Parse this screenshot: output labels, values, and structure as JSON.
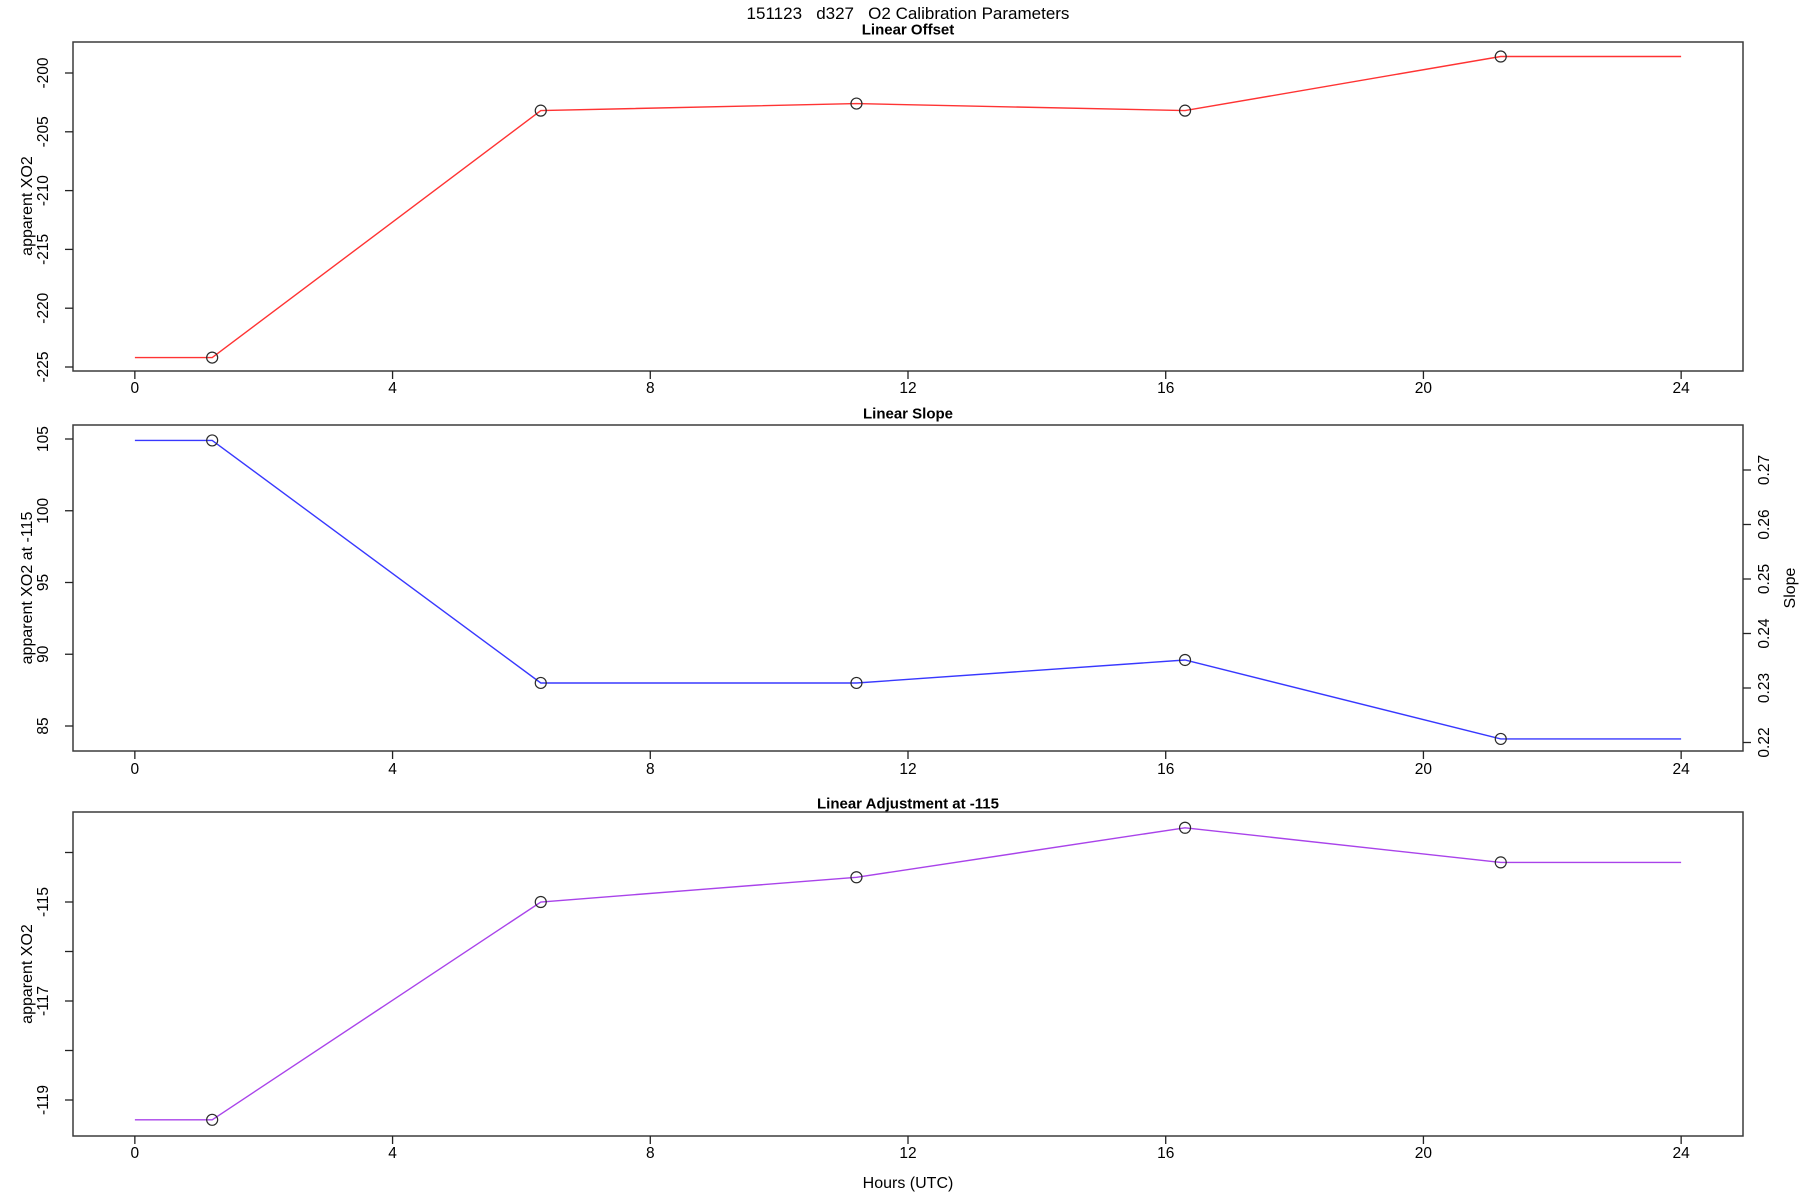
{
  "page_title": "151123   d327   O2 Calibration Parameters",
  "xlabel": "Hours (UTC)",
  "x_ticks": [
    0,
    4,
    8,
    12,
    16,
    20,
    24
  ],
  "xlim": [
    0,
    24
  ],
  "marker_color": "#2a2a2a",
  "chart_data": [
    {
      "type": "line",
      "title": "Linear Offset",
      "ylabel": "apparent XO2",
      "color": "#ff3333",
      "x": [
        1.2,
        6.3,
        11.2,
        16.3,
        21.2
      ],
      "values": [
        -224.2,
        -203.2,
        -202.6,
        -203.2,
        -198.6
      ],
      "line_extends_to": [
        0,
        24
      ],
      "y_ticks": [
        -200,
        -205,
        -210,
        -215,
        -220,
        -225
      ],
      "ylim": [
        -225.3,
        -197.4
      ],
      "grid": "off",
      "legend": "none"
    },
    {
      "type": "line",
      "title": "Linear Slope",
      "ylabel": "apparent XO2 at -115",
      "y2label": "Slope",
      "color": "#3838ff",
      "x": [
        1.2,
        6.3,
        11.2,
        16.3,
        21.2
      ],
      "values": [
        104.9,
        88.0,
        88.0,
        89.6,
        84.1
      ],
      "values_on_slope_axis": [
        0.276,
        0.231,
        0.231,
        0.235,
        0.22
      ],
      "line_extends_to": [
        0,
        24
      ],
      "y_ticks": [
        105,
        100,
        95,
        90,
        85
      ],
      "y2_ticks": [
        0.27,
        0.26,
        0.25,
        0.24,
        0.23,
        0.22
      ],
      "ylim": [
        83.3,
        106.0
      ],
      "y2lim": [
        0.2184,
        0.2783
      ],
      "grid": "off",
      "legend": "none"
    },
    {
      "type": "line",
      "title": "Linear Adjustment at -115",
      "ylabel": "apparent XO2",
      "color": "#a943ea",
      "x": [
        1.2,
        6.3,
        11.2,
        16.3,
        21.2
      ],
      "values": [
        -119.4,
        -115.0,
        -114.5,
        -113.5,
        -114.2
      ],
      "line_extends_to": [
        0,
        24
      ],
      "y_ticks": [
        -115,
        -117,
        -119
      ],
      "y_minor_ticks": [
        -114,
        -116,
        -118
      ],
      "ylim": [
        -119.7,
        -113.2
      ],
      "grid": "off",
      "legend": "none"
    }
  ]
}
